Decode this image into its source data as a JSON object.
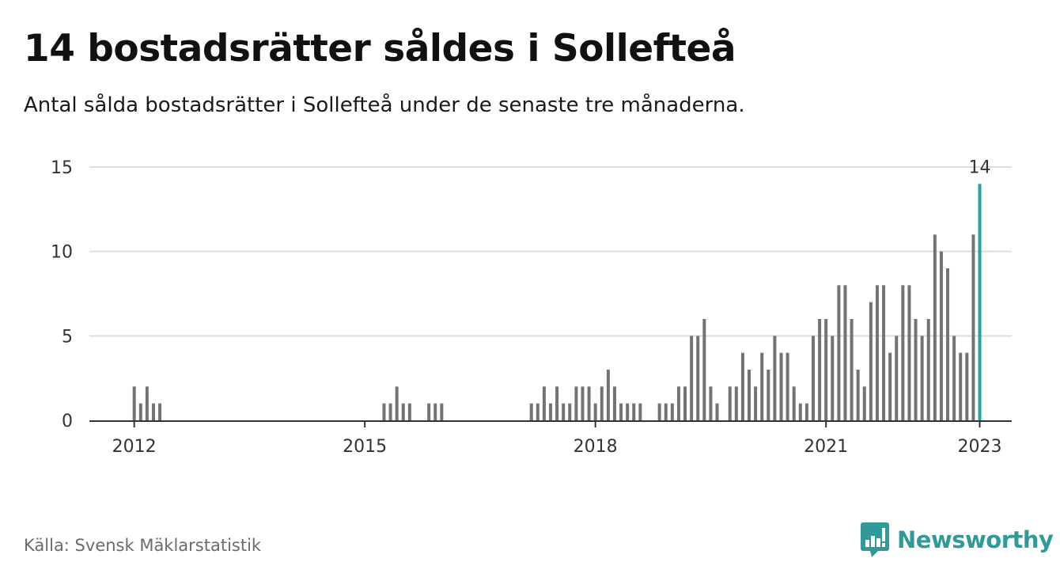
{
  "title": "14 bostadsrätter såldes i Sollefteå",
  "subtitle": "Antal sålda bostadsrätter i Sollefteå under de senaste tre månaderna.",
  "source": "Källa: Svensk Mäklarstatistik",
  "brand": {
    "name": "Newsworthy",
    "icon": "newsworthy-logo-icon"
  },
  "colors": {
    "bar": "#737377",
    "highlight": "#22a39f",
    "grid": "#dddddd",
    "axis": "#333333",
    "brand": "#2f9a97"
  },
  "chart_data": {
    "type": "bar",
    "x_unit": "month",
    "x_ticks": [
      "2012",
      "2015",
      "2018",
      "2021",
      "2023"
    ],
    "y_ticks": [
      0,
      5,
      10,
      15
    ],
    "ylim": [
      0,
      15
    ],
    "xlim": [
      "2011-06",
      "2023-06"
    ],
    "grid": true,
    "highlight_label": "14",
    "series": [
      {
        "points": [
          [
            "2012-01",
            2
          ],
          [
            "2012-02",
            1
          ],
          [
            "2012-03",
            2
          ],
          [
            "2012-04",
            1
          ],
          [
            "2012-05",
            1
          ],
          [
            "2015-04",
            1
          ],
          [
            "2015-05",
            1
          ],
          [
            "2015-06",
            2
          ],
          [
            "2015-07",
            1
          ],
          [
            "2015-08",
            1
          ],
          [
            "2015-11",
            1
          ],
          [
            "2015-12",
            1
          ],
          [
            "2016-01",
            1
          ],
          [
            "2017-03",
            1
          ],
          [
            "2017-04",
            1
          ],
          [
            "2017-05",
            2
          ],
          [
            "2017-06",
            1
          ],
          [
            "2017-07",
            2
          ],
          [
            "2017-08",
            1
          ],
          [
            "2017-09",
            1
          ],
          [
            "2017-10",
            2
          ],
          [
            "2017-11",
            2
          ],
          [
            "2017-12",
            2
          ],
          [
            "2018-01",
            1
          ],
          [
            "2018-02",
            2
          ],
          [
            "2018-03",
            3
          ],
          [
            "2018-04",
            2
          ],
          [
            "2018-05",
            1
          ],
          [
            "2018-06",
            1
          ],
          [
            "2018-07",
            1
          ],
          [
            "2018-08",
            1
          ],
          [
            "2018-11",
            1
          ],
          [
            "2018-12",
            1
          ],
          [
            "2019-01",
            1
          ],
          [
            "2019-02",
            2
          ],
          [
            "2019-03",
            2
          ],
          [
            "2019-04",
            5
          ],
          [
            "2019-05",
            5
          ],
          [
            "2019-06",
            6
          ],
          [
            "2019-07",
            2
          ],
          [
            "2019-08",
            1
          ],
          [
            "2019-10",
            2
          ],
          [
            "2019-11",
            2
          ],
          [
            "2019-12",
            4
          ],
          [
            "2020-01",
            3
          ],
          [
            "2020-02",
            2
          ],
          [
            "2020-03",
            4
          ],
          [
            "2020-04",
            3
          ],
          [
            "2020-05",
            5
          ],
          [
            "2020-06",
            4
          ],
          [
            "2020-07",
            4
          ],
          [
            "2020-08",
            2
          ],
          [
            "2020-09",
            1
          ],
          [
            "2020-10",
            1
          ],
          [
            "2020-11",
            5
          ],
          [
            "2020-12",
            6
          ],
          [
            "2021-01",
            6
          ],
          [
            "2021-02",
            5
          ],
          [
            "2021-03",
            8
          ],
          [
            "2021-04",
            8
          ],
          [
            "2021-05",
            6
          ],
          [
            "2021-06",
            3
          ],
          [
            "2021-07",
            2
          ],
          [
            "2021-08",
            7
          ],
          [
            "2021-09",
            8
          ],
          [
            "2021-10",
            8
          ],
          [
            "2021-11",
            4
          ],
          [
            "2021-12",
            5
          ],
          [
            "2022-01",
            8
          ],
          [
            "2022-02",
            8
          ],
          [
            "2022-03",
            6
          ],
          [
            "2022-04",
            5
          ],
          [
            "2022-05",
            6
          ],
          [
            "2022-06",
            11
          ],
          [
            "2022-07",
            10
          ],
          [
            "2022-08",
            9
          ],
          [
            "2022-09",
            5
          ],
          [
            "2022-10",
            4
          ],
          [
            "2022-11",
            4
          ],
          [
            "2022-12",
            11
          ],
          [
            "2023-01",
            14
          ]
        ]
      }
    ]
  }
}
